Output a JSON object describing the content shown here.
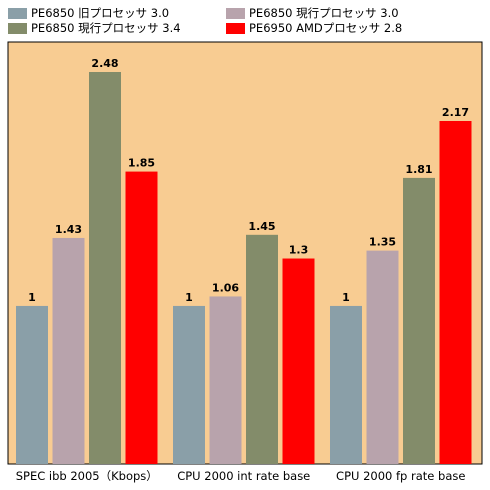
{
  "chart_data": {
    "type": "bar",
    "title": "",
    "xlabel": "",
    "ylabel": "",
    "ylim": [
      0,
      2.6
    ],
    "grid": false,
    "legend_position": "top",
    "plot_background": "#F8CC92",
    "categories": [
      "SPEC ibb 2005（Kbops）",
      "CPU 2000 int rate base",
      "CPU 2000 fp rate base"
    ],
    "series": [
      {
        "name": "PE6850 旧プロセッサ 3.0",
        "color": "#8A9FA8",
        "values": [
          1,
          1,
          1
        ],
        "labels": [
          "1",
          "1",
          "1"
        ]
      },
      {
        "name": "PE6850 現行プロセッサ 3.0",
        "color": "#B8A3AC",
        "values": [
          1.43,
          1.06,
          1.35
        ],
        "labels": [
          "1.43",
          "1.06",
          "1.35"
        ]
      },
      {
        "name": "PE6850 現行プロセッサ 3.4",
        "color": "#838C6A",
        "values": [
          2.48,
          1.45,
          1.81
        ],
        "labels": [
          "2.48",
          "1.45",
          "1.81"
        ]
      },
      {
        "name": "PE6950 AMDプロセッサ 2.8",
        "color": "#FF0000",
        "values": [
          1.85,
          1.3,
          2.17
        ],
        "labels": [
          "1.85",
          "1.3",
          "2.17"
        ]
      }
    ]
  }
}
